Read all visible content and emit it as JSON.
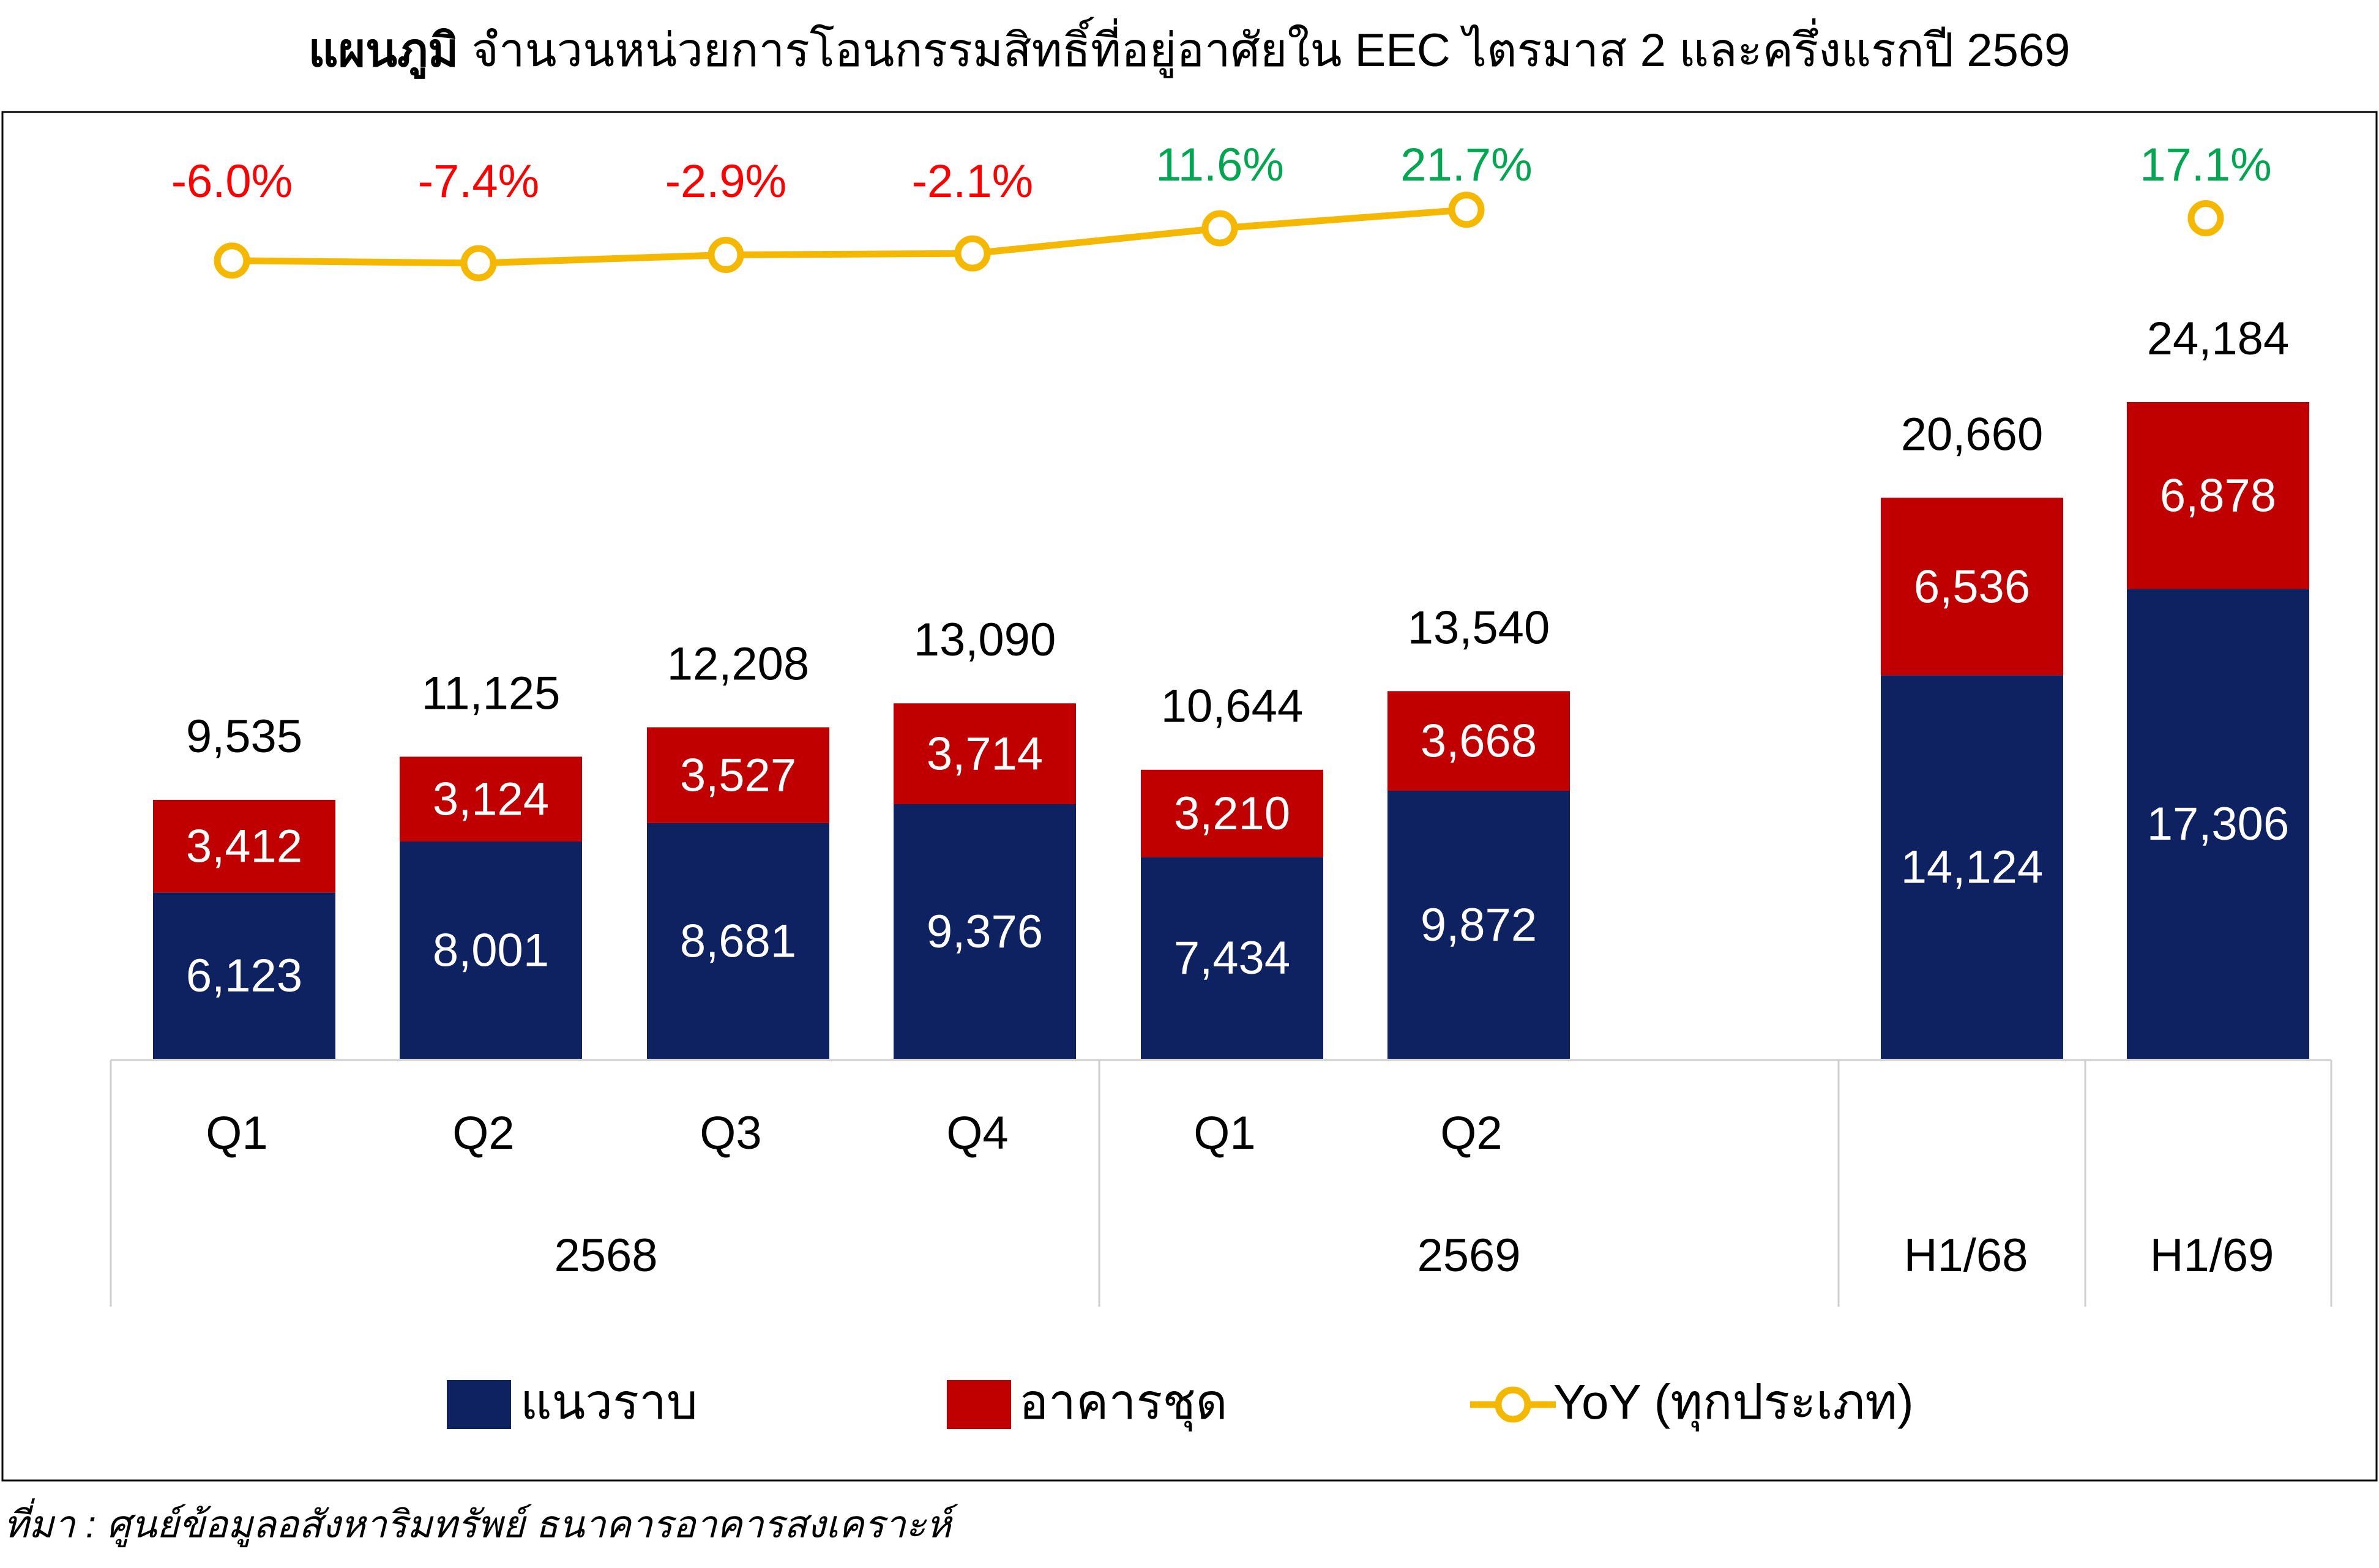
{
  "title": {
    "bold": "แผนภูมิ",
    "rest": " จำนวนหน่วยการโอนกรรมสิทธิ์ที่อยู่อาศัยใน EEC ไตรมาส 2 และครึ่งแรกปี 2569"
  },
  "source": "ที่มา : ศูนย์ข้อมูลอสังหาริมทรัพย์ ธนาคารอาคารสงเคราะห์",
  "chart_data": {
    "type": "bar",
    "stacked": true,
    "categories": [
      "Q1",
      "Q2",
      "Q3",
      "Q4",
      "Q1",
      "Q2",
      "H1/68",
      "H1/69"
    ],
    "groups": [
      {
        "label": "2568",
        "categories": [
          0,
          1,
          2,
          3
        ]
      },
      {
        "label": "2569",
        "categories": [
          4,
          5
        ]
      },
      {
        "label": "",
        "categories": [
          6
        ]
      },
      {
        "label": "",
        "categories": [
          7
        ]
      }
    ],
    "series": [
      {
        "name": "แนวราบ",
        "color": "#0e2160",
        "values": [
          6123,
          8001,
          8681,
          9376,
          7434,
          9872,
          14124,
          17306
        ]
      },
      {
        "name": "อาคารชุด",
        "color": "#c00000",
        "values": [
          3412,
          3124,
          3527,
          3714,
          3210,
          3668,
          6536,
          6878
        ]
      }
    ],
    "totals": [
      "9,535",
      "11,125",
      "12,208",
      "13,090",
      "10,644",
      "13,540",
      "20,660",
      "24,184"
    ],
    "value_labels": {
      "แนวราบ": [
        "6,123",
        "8,001",
        "8,681",
        "9,376",
        "7,434",
        "9,872",
        "14,124",
        "17,306"
      ],
      "อาคารชุด": [
        "3,412",
        "3,124",
        "3,527",
        "3,714",
        "3,210",
        "3,668",
        "6,536",
        "6,878"
      ]
    },
    "yoy": {
      "name": "YoY (ทุกประเภท)",
      "color": "#f5b800",
      "values": [
        -6.0,
        -7.4,
        -2.9,
        -2.1,
        11.6,
        21.7,
        null,
        17.1
      ],
      "labels": [
        "-6.0%",
        "-7.4%",
        "-2.9%",
        "-2.1%",
        "11.6%",
        "21.7%",
        "",
        "17.1%"
      ],
      "positive_color": "#00a650",
      "negative_color": "#ff0000"
    },
    "legend_position": "bottom",
    "grid": false
  }
}
